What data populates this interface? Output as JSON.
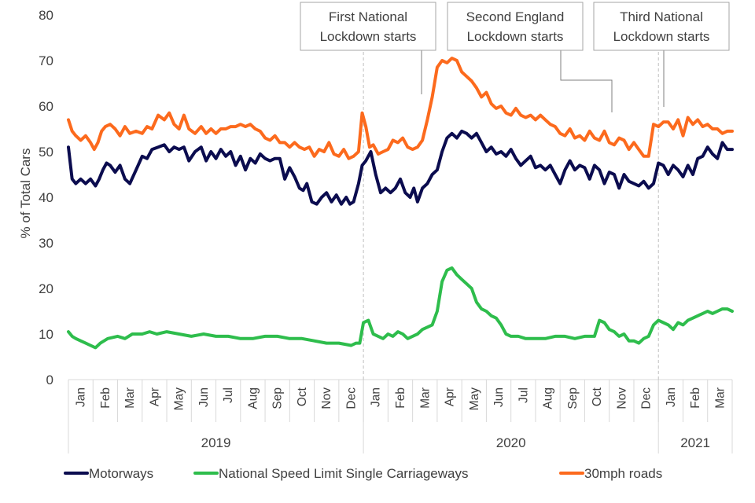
{
  "chart_data": {
    "type": "line",
    "ylabel": "% of Total Cars",
    "ylim": [
      0,
      80
    ],
    "yticks": [
      0,
      10,
      20,
      30,
      40,
      50,
      60,
      70,
      80
    ],
    "months": [
      "Jan",
      "Feb",
      "Mar",
      "Apr",
      "May",
      "Jun",
      "Jul",
      "Aug",
      "Sep",
      "Oct",
      "Nov",
      "Dec",
      "Jan",
      "Feb",
      "Mar",
      "Apr",
      "May",
      "Jun",
      "Jul",
      "Aug",
      "Sep",
      "Oct",
      "Nov",
      "Dec",
      "Jan",
      "Feb",
      "Mar"
    ],
    "years": [
      {
        "label": "2019",
        "start_month": 0,
        "end_month": 12
      },
      {
        "label": "2020",
        "start_month": 12,
        "end_month": 24
      },
      {
        "label": "2021",
        "start_month": 24,
        "end_month": 27
      }
    ],
    "x_unit": "month index (0 = start of Jan 2019)",
    "series": [
      {
        "name": "Motorways",
        "color": "#0b0c4f",
        "x": [
          0.0,
          0.15,
          0.3,
          0.5,
          0.7,
          0.9,
          1.1,
          1.25,
          1.4,
          1.55,
          1.7,
          1.9,
          2.1,
          2.3,
          2.5,
          2.75,
          3.0,
          3.2,
          3.4,
          3.65,
          3.9,
          4.1,
          4.3,
          4.5,
          4.7,
          4.9,
          5.15,
          5.4,
          5.6,
          5.8,
          6.0,
          6.2,
          6.4,
          6.6,
          6.8,
          7.0,
          7.2,
          7.4,
          7.6,
          7.8,
          8.0,
          8.2,
          8.4,
          8.6,
          8.8,
          9.0,
          9.2,
          9.4,
          9.55,
          9.7,
          9.9,
          10.1,
          10.3,
          10.5,
          10.7,
          10.9,
          11.1,
          11.3,
          11.45,
          11.6,
          11.8,
          11.95,
          12.1,
          12.3,
          12.5,
          12.7,
          12.9,
          13.1,
          13.3,
          13.5,
          13.7,
          13.9,
          14.05,
          14.2,
          14.4,
          14.6,
          14.8,
          15.0,
          15.2,
          15.4,
          15.6,
          15.8,
          16.0,
          16.2,
          16.4,
          16.6,
          16.8,
          17.0,
          17.2,
          17.4,
          17.6,
          17.8,
          18.0,
          18.2,
          18.4,
          18.6,
          18.8,
          19.0,
          19.2,
          19.4,
          19.6,
          19.8,
          20.0,
          20.2,
          20.4,
          20.6,
          20.8,
          21.0,
          21.2,
          21.4,
          21.6,
          21.8,
          22.0,
          22.2,
          22.4,
          22.6,
          22.8,
          23.0,
          23.2,
          23.4,
          23.6,
          23.8,
          24.0,
          24.2,
          24.4,
          24.6,
          24.8,
          25.0,
          25.2,
          25.4,
          25.6,
          25.8,
          26.0,
          26.2,
          26.4,
          26.6,
          26.8,
          27.0
        ],
        "y": [
          51.0,
          44.0,
          43.0,
          44.0,
          43.0,
          44.0,
          42.5,
          44.0,
          46.0,
          47.5,
          47.0,
          45.5,
          47.0,
          44.0,
          43.0,
          46.0,
          49.0,
          48.5,
          50.5,
          51.0,
          51.5,
          50.0,
          51.0,
          50.5,
          51.0,
          48.0,
          50.0,
          51.0,
          48.0,
          50.0,
          48.5,
          50.5,
          49.0,
          50.0,
          47.0,
          49.0,
          46.0,
          48.5,
          47.5,
          49.5,
          48.5,
          48.0,
          48.5,
          48.5,
          44.0,
          46.5,
          44.5,
          42.0,
          41.5,
          43.0,
          39.0,
          38.5,
          40.0,
          41.0,
          39.0,
          40.5,
          38.5,
          40.0,
          38.5,
          39.0,
          43.0,
          47.0,
          48.0,
          50.0,
          45.0,
          41.0,
          42.0,
          41.0,
          42.0,
          44.0,
          41.0,
          40.0,
          42.0,
          39.0,
          42.0,
          43.0,
          45.0,
          46.0,
          50.0,
          53.0,
          54.0,
          53.0,
          54.5,
          54.0,
          53.0,
          54.0,
          52.0,
          50.0,
          51.0,
          49.5,
          50.0,
          49.0,
          50.5,
          48.5,
          47.0,
          48.0,
          49.0,
          46.5,
          47.0,
          46.0,
          47.0,
          45.0,
          43.0,
          46.0,
          48.0,
          46.0,
          47.0,
          46.5,
          44.0,
          47.0,
          46.0,
          43.0,
          45.5,
          45.0,
          42.0,
          45.0,
          43.5,
          43.0,
          42.5,
          43.5,
          42.0,
          43.0,
          47.5,
          47.0,
          45.0,
          47.0,
          46.0,
          44.5,
          47.0,
          45.0,
          48.5,
          49.0,
          51.0,
          49.5,
          48.5,
          52.0,
          50.5,
          50.5
        ]
      },
      {
        "name": "National Speed Limit Single Carriageways",
        "color": "#2ebd4c",
        "x": [
          0.0,
          0.15,
          0.3,
          0.5,
          0.7,
          0.9,
          1.1,
          1.3,
          1.6,
          2.0,
          2.3,
          2.6,
          3.0,
          3.3,
          3.6,
          4.0,
          4.5,
          5.0,
          5.5,
          6.0,
          6.5,
          7.0,
          7.5,
          8.0,
          8.5,
          9.0,
          9.5,
          10.0,
          10.5,
          11.0,
          11.5,
          11.7,
          11.85,
          12.0,
          12.2,
          12.4,
          12.6,
          12.8,
          13.0,
          13.2,
          13.4,
          13.6,
          13.8,
          14.0,
          14.2,
          14.4,
          14.6,
          14.8,
          15.0,
          15.2,
          15.4,
          15.6,
          15.8,
          16.0,
          16.2,
          16.4,
          16.6,
          16.8,
          17.0,
          17.2,
          17.4,
          17.6,
          17.8,
          18.0,
          18.3,
          18.6,
          19.0,
          19.4,
          19.8,
          20.2,
          20.6,
          21.0,
          21.4,
          21.6,
          21.8,
          22.0,
          22.2,
          22.4,
          22.6,
          22.8,
          23.0,
          23.2,
          23.4,
          23.6,
          23.8,
          24.0,
          24.2,
          24.4,
          24.6,
          24.8,
          25.0,
          25.2,
          25.4,
          25.6,
          25.8,
          26.0,
          26.2,
          26.4,
          26.6,
          26.8,
          27.0
        ],
        "y": [
          10.5,
          9.5,
          9.0,
          8.5,
          8.0,
          7.5,
          7.0,
          8.0,
          9.0,
          9.5,
          9.0,
          10.0,
          10.0,
          10.5,
          10.0,
          10.5,
          10.0,
          9.5,
          10.0,
          9.5,
          9.5,
          9.0,
          9.0,
          9.5,
          9.5,
          9.0,
          9.0,
          8.5,
          8.0,
          8.0,
          7.5,
          8.0,
          8.0,
          12.5,
          13.0,
          10.0,
          9.5,
          9.0,
          10.0,
          9.5,
          10.5,
          10.0,
          9.0,
          9.5,
          10.0,
          11.0,
          11.5,
          12.0,
          15.0,
          21.5,
          24.0,
          24.5,
          23.0,
          22.0,
          21.0,
          20.0,
          17.0,
          15.5,
          15.0,
          14.0,
          13.5,
          12.0,
          10.0,
          9.5,
          9.5,
          9.0,
          9.0,
          9.0,
          9.5,
          9.5,
          9.0,
          9.5,
          9.5,
          13.0,
          12.5,
          11.0,
          10.5,
          9.5,
          10.0,
          8.5,
          8.5,
          8.0,
          9.0,
          9.5,
          12.0,
          13.0,
          12.5,
          12.0,
          11.0,
          12.5,
          12.0,
          13.0,
          13.5,
          14.0,
          14.5,
          15.0,
          14.5,
          15.0,
          15.5,
          15.5,
          15.0
        ]
      },
      {
        "name": "30mph roads",
        "color": "#fc6a1d",
        "x": [
          0.0,
          0.15,
          0.3,
          0.5,
          0.7,
          0.9,
          1.05,
          1.2,
          1.35,
          1.5,
          1.7,
          1.9,
          2.1,
          2.3,
          2.5,
          2.75,
          3.0,
          3.2,
          3.4,
          3.65,
          3.9,
          4.1,
          4.3,
          4.5,
          4.7,
          4.9,
          5.15,
          5.4,
          5.6,
          5.8,
          6.0,
          6.2,
          6.4,
          6.6,
          6.8,
          7.0,
          7.2,
          7.4,
          7.6,
          7.8,
          8.0,
          8.2,
          8.4,
          8.6,
          8.8,
          9.0,
          9.2,
          9.4,
          9.6,
          9.8,
          10.0,
          10.2,
          10.4,
          10.6,
          10.8,
          11.0,
          11.2,
          11.4,
          11.6,
          11.8,
          11.95,
          12.1,
          12.25,
          12.4,
          12.6,
          12.8,
          13.0,
          13.2,
          13.4,
          13.6,
          13.8,
          14.0,
          14.2,
          14.4,
          14.6,
          14.8,
          15.0,
          15.2,
          15.4,
          15.6,
          15.8,
          16.0,
          16.2,
          16.4,
          16.6,
          16.8,
          17.0,
          17.2,
          17.4,
          17.6,
          17.8,
          18.0,
          18.2,
          18.4,
          18.6,
          18.8,
          19.0,
          19.2,
          19.4,
          19.6,
          19.8,
          20.0,
          20.2,
          20.4,
          20.6,
          20.8,
          21.0,
          21.2,
          21.4,
          21.6,
          21.8,
          22.0,
          22.2,
          22.4,
          22.6,
          22.8,
          23.0,
          23.2,
          23.4,
          23.6,
          23.8,
          24.0,
          24.2,
          24.4,
          24.6,
          24.8,
          25.0,
          25.2,
          25.4,
          25.6,
          25.8,
          26.0,
          26.2,
          26.4,
          26.6,
          26.8,
          27.0
        ],
        "y": [
          57.0,
          54.5,
          53.5,
          52.5,
          53.5,
          52.0,
          50.5,
          52.0,
          54.5,
          55.5,
          56.0,
          55.0,
          53.5,
          55.5,
          54.0,
          54.5,
          54.0,
          55.5,
          55.0,
          58.0,
          57.0,
          58.5,
          56.0,
          55.0,
          58.0,
          55.0,
          54.0,
          55.5,
          54.0,
          55.0,
          54.0,
          55.0,
          55.0,
          55.5,
          55.5,
          56.0,
          55.5,
          56.0,
          55.0,
          54.5,
          53.0,
          52.5,
          53.5,
          52.0,
          52.0,
          51.0,
          52.0,
          51.0,
          50.5,
          51.0,
          49.0,
          50.5,
          50.0,
          52.0,
          49.5,
          49.0,
          50.5,
          48.5,
          49.0,
          50.0,
          58.5,
          55.5,
          51.0,
          51.5,
          49.5,
          50.0,
          50.5,
          52.5,
          52.0,
          53.0,
          51.0,
          50.5,
          51.0,
          52.5,
          57.0,
          62.0,
          68.5,
          70.0,
          69.5,
          70.5,
          70.0,
          67.5,
          66.5,
          65.5,
          64.0,
          62.0,
          63.0,
          60.5,
          59.5,
          60.0,
          58.5,
          58.0,
          59.5,
          58.0,
          57.5,
          58.0,
          57.0,
          58.0,
          57.0,
          56.0,
          55.5,
          54.0,
          53.5,
          55.0,
          53.0,
          53.5,
          52.5,
          54.5,
          53.0,
          52.5,
          54.5,
          52.0,
          51.5,
          53.0,
          52.5,
          50.5,
          52.0,
          50.5,
          49.0,
          49.0,
          56.0,
          55.5,
          56.5,
          56.5,
          55.0,
          57.0,
          53.5,
          57.5,
          56.0,
          57.0,
          55.5,
          56.0,
          55.0,
          55.0,
          54.0,
          54.5,
          54.5
        ]
      }
    ],
    "annotations": [
      {
        "lines": [
          "First National",
          "Lockdown starts"
        ],
        "x_month": 12.0
      },
      {
        "lines": [
          "Second England",
          "Lockdown starts"
        ],
        "x_month": 22.2
      },
      {
        "lines": [
          "Third National",
          "Lockdown starts"
        ],
        "x_month": 24.3
      }
    ],
    "vlines_at_month": [
      12,
      24
    ],
    "legend_position": "bottom"
  }
}
